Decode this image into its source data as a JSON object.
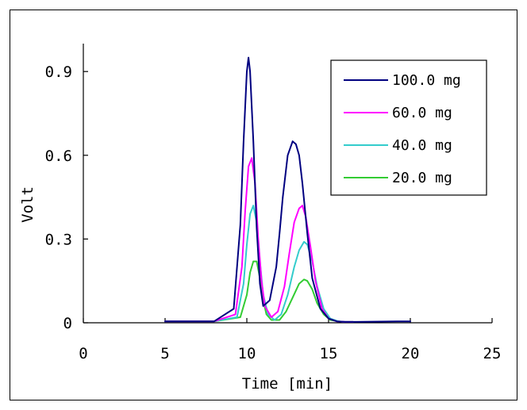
{
  "chart_data": {
    "type": "line",
    "title": "",
    "xlabel": "Time [min]",
    "ylabel": "Volt",
    "xlim": [
      0,
      25
    ],
    "ylim": [
      0,
      1.0
    ],
    "xticks": [
      0,
      5,
      10,
      15,
      20,
      25
    ],
    "xtick_labels": [
      "0",
      "5",
      "10",
      "15",
      "20",
      "25"
    ],
    "yticks": [
      0,
      0.3,
      0.6,
      0.9
    ],
    "ytick_labels": [
      "0",
      "0.3",
      "0.6",
      "0.9"
    ],
    "grid": false,
    "legend_position": "top-right",
    "series": [
      {
        "name": "100.0 mg",
        "color": "#000080",
        "x": [
          5.0,
          8.0,
          9.2,
          9.6,
          9.8,
          10.0,
          10.1,
          10.2,
          10.4,
          10.6,
          10.8,
          11.0,
          11.4,
          11.8,
          12.0,
          12.2,
          12.5,
          12.8,
          13.0,
          13.2,
          13.4,
          13.7,
          14.0,
          14.5,
          15.0,
          15.5,
          16.0,
          16.7,
          19.2,
          20.0
        ],
        "y": [
          0.005,
          0.005,
          0.05,
          0.35,
          0.65,
          0.9,
          0.95,
          0.9,
          0.65,
          0.34,
          0.14,
          0.06,
          0.08,
          0.2,
          0.32,
          0.45,
          0.6,
          0.65,
          0.64,
          0.6,
          0.5,
          0.32,
          0.16,
          0.05,
          0.015,
          0.005,
          0.003,
          0.003,
          0.005,
          0.005
        ]
      },
      {
        "name": "60.0 mg",
        "color": "#ff00ff",
        "x": [
          5.0,
          8.0,
          9.3,
          9.7,
          9.9,
          10.1,
          10.3,
          10.5,
          10.7,
          10.9,
          11.1,
          11.5,
          11.9,
          12.3,
          12.6,
          12.9,
          13.2,
          13.4,
          13.6,
          13.9,
          14.2,
          14.6,
          15.0,
          15.5,
          16.0,
          16.5
        ],
        "y": [
          0.005,
          0.005,
          0.03,
          0.2,
          0.4,
          0.56,
          0.59,
          0.5,
          0.3,
          0.15,
          0.06,
          0.02,
          0.04,
          0.13,
          0.25,
          0.36,
          0.41,
          0.42,
          0.38,
          0.27,
          0.15,
          0.05,
          0.015,
          0.005,
          0.003,
          0.003
        ]
      },
      {
        "name": "40.0 mg",
        "color": "#33cccc",
        "x": [
          5.0,
          8.0,
          9.4,
          9.8,
          10.0,
          10.2,
          10.4,
          10.6,
          10.8,
          11.0,
          11.3,
          11.7,
          12.1,
          12.5,
          12.9,
          13.2,
          13.5,
          13.7,
          14.0,
          14.3,
          14.7,
          15.1,
          15.6,
          16.0,
          16.5
        ],
        "y": [
          0.005,
          0.005,
          0.02,
          0.14,
          0.28,
          0.39,
          0.42,
          0.36,
          0.22,
          0.1,
          0.03,
          0.01,
          0.03,
          0.1,
          0.2,
          0.26,
          0.29,
          0.28,
          0.22,
          0.13,
          0.05,
          0.015,
          0.005,
          0.003,
          0.003
        ]
      },
      {
        "name": "20.0 mg",
        "color": "#33cc33",
        "x": [
          5.0,
          8.0,
          9.6,
          10.0,
          10.2,
          10.4,
          10.6,
          10.8,
          11.0,
          11.2,
          11.5,
          12.0,
          12.4,
          12.8,
          13.2,
          13.5,
          13.7,
          14.0,
          14.3,
          14.7,
          15.1,
          15.6,
          16.0,
          16.5
        ],
        "y": [
          0.005,
          0.005,
          0.02,
          0.1,
          0.18,
          0.22,
          0.22,
          0.16,
          0.08,
          0.03,
          0.01,
          0.01,
          0.04,
          0.09,
          0.14,
          0.155,
          0.15,
          0.12,
          0.07,
          0.03,
          0.01,
          0.005,
          0.003,
          0.003
        ]
      }
    ]
  }
}
